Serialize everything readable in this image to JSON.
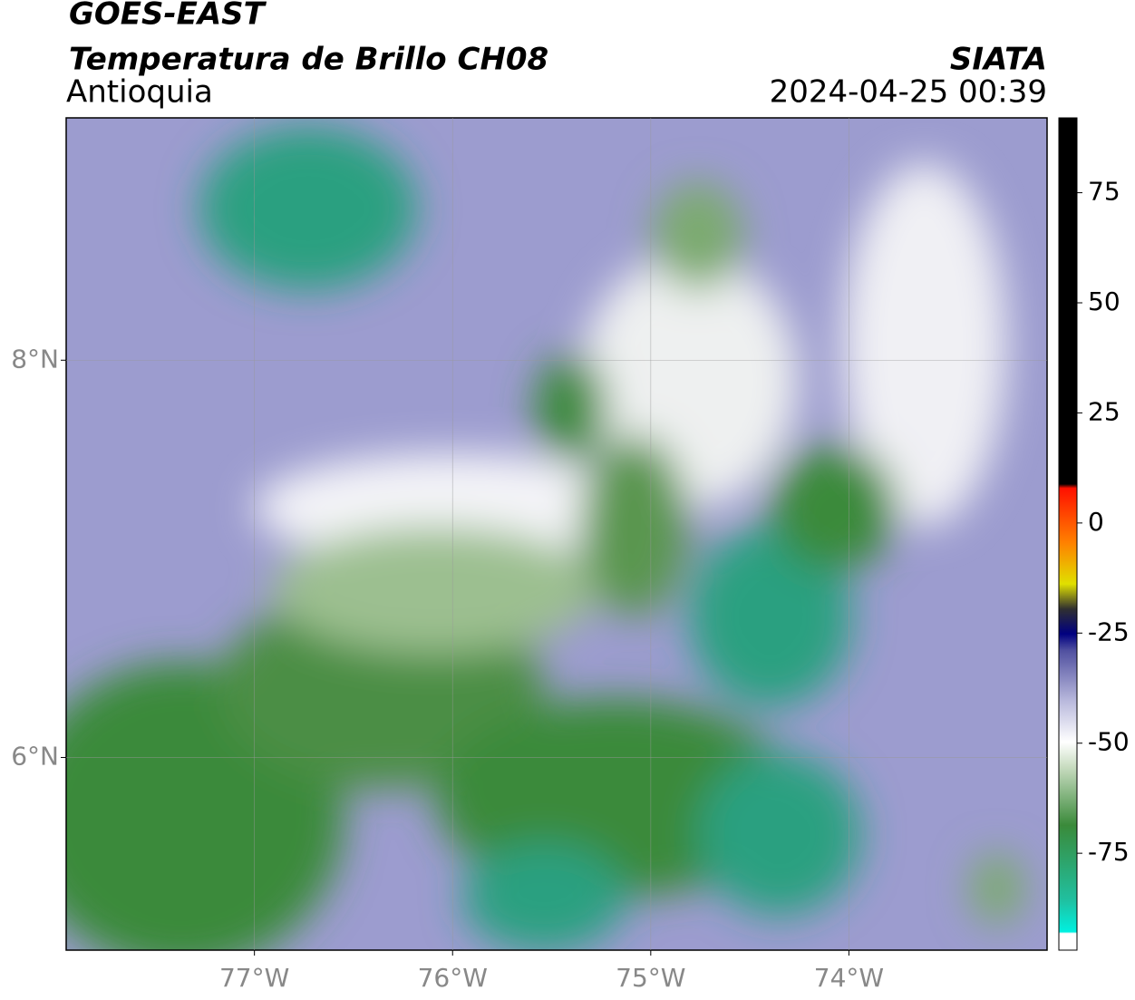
{
  "header": {
    "title": "GOES-EAST",
    "subtitle": "Temperatura de Brillo CH08",
    "region": "Antioquia",
    "source": "SIATA",
    "datetime": "2024-04-25 00:39"
  },
  "map": {
    "xlim": [
      -77.95,
      -73.0
    ],
    "ylim": [
      5.03,
      9.22
    ],
    "xticks": [
      {
        "value": -77,
        "label": "77°W"
      },
      {
        "value": -76,
        "label": "76°W"
      },
      {
        "value": -75,
        "label": "75°W"
      },
      {
        "value": -74,
        "label": "74°W"
      }
    ],
    "yticks": [
      {
        "value": 8,
        "label": "8°N"
      },
      {
        "value": 6,
        "label": "6°N"
      }
    ],
    "grid": true
  },
  "colorbar": {
    "clim": [
      -97,
      92
    ],
    "ticks": [
      75,
      50,
      25,
      0,
      -25,
      -50,
      -75
    ]
  }
}
